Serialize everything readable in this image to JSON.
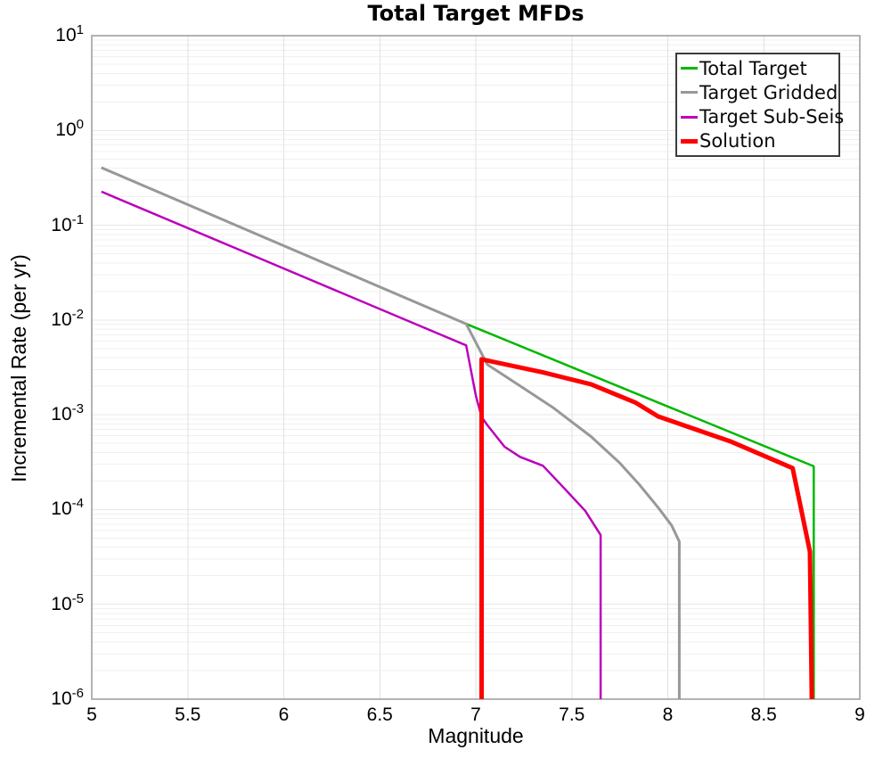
{
  "title": "Total Target MFDs",
  "axes": {
    "xlabel": "Magnitude",
    "ylabel": "Incremental Rate (per yr)",
    "x_ticks": [
      {
        "label": "5",
        "value": 5
      },
      {
        "label": "5.5",
        "value": 5.5
      },
      {
        "label": "6",
        "value": 6
      },
      {
        "label": "6.5",
        "value": 6.5
      },
      {
        "label": "7",
        "value": 7
      },
      {
        "label": "7.5",
        "value": 7.5
      },
      {
        "label": "8",
        "value": 8
      },
      {
        "label": "8.5",
        "value": 8.5
      },
      {
        "label": "9",
        "value": 9
      }
    ],
    "y_ticks": [
      {
        "base": "10",
        "exp": "1",
        "value": 10
      },
      {
        "base": "10",
        "exp": "0",
        "value": 1
      },
      {
        "base": "10",
        "exp": "-1",
        "value": 0.1
      },
      {
        "base": "10",
        "exp": "-2",
        "value": 0.01
      },
      {
        "base": "10",
        "exp": "-3",
        "value": 0.001
      },
      {
        "base": "10",
        "exp": "-4",
        "value": 0.0001
      },
      {
        "base": "10",
        "exp": "-5",
        "value": 1e-05
      },
      {
        "base": "10",
        "exp": "-6",
        "value": 1e-06
      }
    ]
  },
  "legend": {
    "items": [
      {
        "label": "Total Target",
        "color": "#00b800",
        "thickness": 3
      },
      {
        "label": "Target Gridded",
        "color": "#989898",
        "thickness": 3
      },
      {
        "label": "Target Sub-Seis",
        "color": "#bb00bb",
        "thickness": 3
      },
      {
        "label": "Solution",
        "color": "#ff0000",
        "thickness": 5
      }
    ]
  },
  "style": {
    "background": "#ffffff",
    "grid_minor": "#f0f0f0",
    "grid_major": "#e7e7e7",
    "grid_vertical": "#e2e2e2",
    "spine": "#9a9a9a",
    "legend_border": "#3c3c3c",
    "text": "#000000"
  },
  "chart_data": {
    "type": "line",
    "title": "Total Target MFDs",
    "xlabel": "Magnitude",
    "ylabel": "Incremental Rate (per yr)",
    "xlim": [
      5,
      9
    ],
    "ylim": [
      1e-06,
      10
    ],
    "y_scale": "log",
    "grid": true,
    "legend_position": "upper right",
    "series": [
      {
        "name": "Total Target",
        "color": "#00b800",
        "width": 2.5,
        "points": [
          [
            5.05,
            0.405
          ],
          [
            6.95,
            0.0091
          ],
          [
            8.76,
            0.000286
          ],
          [
            8.76,
            1e-06
          ]
        ]
      },
      {
        "name": "Target Gridded",
        "color": "#989898",
        "width": 3,
        "points": [
          [
            5.05,
            0.405
          ],
          [
            6.95,
            0.0091
          ],
          [
            7.06,
            0.0034
          ],
          [
            7.25,
            0.0019
          ],
          [
            7.4,
            0.0012
          ],
          [
            7.6,
            0.00059
          ],
          [
            7.75,
            0.00031
          ],
          [
            7.85,
            0.000185
          ],
          [
            7.95,
            0.000105
          ],
          [
            8.02,
            6.8e-05
          ],
          [
            8.06,
            4.6e-05
          ],
          [
            8.06,
            1e-06
          ]
        ]
      },
      {
        "name": "Target Sub-Seis",
        "color": "#bb00bb",
        "width": 2.5,
        "points": [
          [
            5.05,
            0.226
          ],
          [
            6.95,
            0.0054
          ],
          [
            7.0,
            0.0016
          ],
          [
            7.03,
            0.00095
          ],
          [
            7.06,
            0.00078
          ],
          [
            7.15,
            0.00046
          ],
          [
            7.23,
            0.00036
          ],
          [
            7.35,
            0.00029
          ],
          [
            7.47,
            0.00016
          ],
          [
            7.57,
            9.7e-05
          ],
          [
            7.65,
            5.4e-05
          ],
          [
            7.65,
            1e-06
          ]
        ]
      },
      {
        "name": "Solution",
        "color": "#ff0000",
        "width": 5,
        "points": [
          [
            7.03,
            1e-06
          ],
          [
            7.03,
            0.00385
          ],
          [
            7.35,
            0.0028
          ],
          [
            7.6,
            0.0021
          ],
          [
            7.83,
            0.00135
          ],
          [
            7.95,
            0.00096
          ],
          [
            8.33,
            0.00052
          ],
          [
            8.65,
            0.000274
          ],
          [
            8.74,
            3.6e-05
          ],
          [
            8.75,
            1e-06
          ]
        ]
      }
    ]
  }
}
